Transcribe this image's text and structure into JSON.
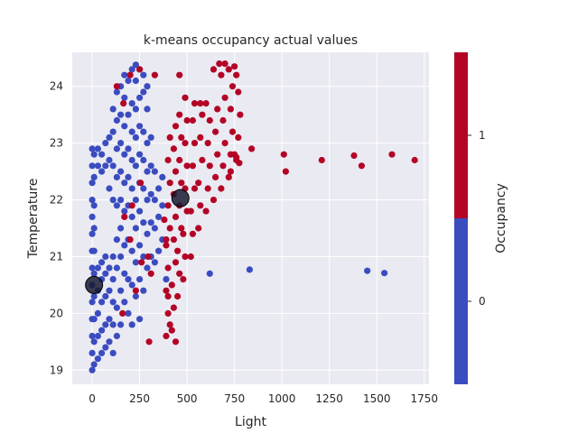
{
  "chart_data": {
    "type": "scatter",
    "title": "k-means occupancy actual values",
    "xlabel": "Light",
    "ylabel": "Temperature",
    "xlim": [
      -105,
      1775
    ],
    "ylim": [
      18.75,
      24.6
    ],
    "xticks": [
      0,
      250,
      500,
      750,
      1000,
      1250,
      1500,
      1750
    ],
    "yticks": [
      19,
      20,
      21,
      22,
      23,
      24
    ],
    "grid": true,
    "colorbar": {
      "label": "Occupancy",
      "ticks": [
        0,
        1
      ],
      "colors": [
        "#3b4cc0",
        "#b40426"
      ]
    },
    "centroids": [
      {
        "x": 10,
        "y": 20.5
      },
      {
        "x": 465,
        "y": 22.03
      }
    ],
    "series": [
      {
        "value": 0,
        "color": "#3b4cc0",
        "points": [
          [
            0,
            19.0
          ],
          [
            0,
            19.3
          ],
          [
            0,
            19.6
          ],
          [
            0,
            19.9
          ],
          [
            0,
            20.2
          ],
          [
            0,
            20.5
          ],
          [
            0,
            20.8
          ],
          [
            0,
            21.1
          ],
          [
            0,
            21.4
          ],
          [
            0,
            21.7
          ],
          [
            0,
            22.0
          ],
          [
            0,
            22.3
          ],
          [
            0,
            22.6
          ],
          [
            0,
            22.9
          ],
          [
            10,
            19.1
          ],
          [
            10,
            19.5
          ],
          [
            10,
            19.9
          ],
          [
            10,
            20.3
          ],
          [
            10,
            20.7
          ],
          [
            10,
            21.1
          ],
          [
            10,
            21.5
          ],
          [
            10,
            21.9
          ],
          [
            10,
            22.4
          ],
          [
            10,
            22.8
          ],
          [
            30,
            19.2
          ],
          [
            30,
            19.6
          ],
          [
            30,
            20.0
          ],
          [
            30,
            20.4
          ],
          [
            30,
            20.8
          ],
          [
            30,
            22.6
          ],
          [
            30,
            22.9
          ],
          [
            50,
            19.3
          ],
          [
            50,
            19.7
          ],
          [
            50,
            20.2
          ],
          [
            50,
            20.6
          ],
          [
            50,
            20.9
          ],
          [
            50,
            22.5
          ],
          [
            50,
            22.8
          ],
          [
            70,
            19.4
          ],
          [
            70,
            19.8
          ],
          [
            70,
            20.3
          ],
          [
            70,
            20.7
          ],
          [
            70,
            21.0
          ],
          [
            70,
            22.6
          ],
          [
            70,
            23.0
          ],
          [
            90,
            19.5
          ],
          [
            90,
            19.9
          ],
          [
            90,
            20.4
          ],
          [
            90,
            20.8
          ],
          [
            90,
            22.2
          ],
          [
            90,
            22.7
          ],
          [
            90,
            23.1
          ],
          [
            110,
            19.3
          ],
          [
            110,
            19.8
          ],
          [
            110,
            20.2
          ],
          [
            110,
            20.6
          ],
          [
            110,
            21.0
          ],
          [
            110,
            22.0
          ],
          [
            110,
            22.6
          ],
          [
            110,
            23.2
          ],
          [
            110,
            23.6
          ],
          [
            130,
            19.6
          ],
          [
            130,
            20.1
          ],
          [
            130,
            20.8
          ],
          [
            130,
            21.3
          ],
          [
            130,
            21.9
          ],
          [
            130,
            22.4
          ],
          [
            130,
            22.9
          ],
          [
            130,
            23.4
          ],
          [
            130,
            23.9
          ],
          [
            150,
            19.8
          ],
          [
            150,
            20.4
          ],
          [
            150,
            21.0
          ],
          [
            150,
            21.5
          ],
          [
            150,
            22.0
          ],
          [
            150,
            22.5
          ],
          [
            150,
            23.0
          ],
          [
            150,
            23.5
          ],
          [
            150,
            24.0
          ],
          [
            170,
            20.2
          ],
          [
            170,
            20.7
          ],
          [
            170,
            21.2
          ],
          [
            170,
            21.8
          ],
          [
            170,
            22.3
          ],
          [
            170,
            22.8
          ],
          [
            170,
            23.3
          ],
          [
            170,
            23.8
          ],
          [
            170,
            24.2
          ],
          [
            190,
            20.0
          ],
          [
            190,
            20.6
          ],
          [
            190,
            21.3
          ],
          [
            190,
            21.9
          ],
          [
            190,
            22.4
          ],
          [
            190,
            22.9
          ],
          [
            190,
            23.5
          ],
          [
            190,
            24.1
          ],
          [
            210,
            19.8
          ],
          [
            210,
            20.5
          ],
          [
            210,
            21.1
          ],
          [
            210,
            21.7
          ],
          [
            210,
            22.2
          ],
          [
            210,
            22.7
          ],
          [
            210,
            23.2
          ],
          [
            210,
            23.7
          ],
          [
            210,
            24.3
          ],
          [
            230,
            20.3
          ],
          [
            230,
            20.9
          ],
          [
            230,
            21.5
          ],
          [
            230,
            22.0
          ],
          [
            230,
            22.6
          ],
          [
            230,
            23.1
          ],
          [
            230,
            23.6
          ],
          [
            230,
            24.1
          ],
          [
            230,
            24.38
          ],
          [
            250,
            19.9
          ],
          [
            250,
            20.6
          ],
          [
            250,
            21.2
          ],
          [
            250,
            21.8
          ],
          [
            250,
            22.3
          ],
          [
            250,
            22.8
          ],
          [
            250,
            23.3
          ],
          [
            250,
            23.8
          ],
          [
            250,
            24.3
          ],
          [
            270,
            20.4
          ],
          [
            270,
            21.0
          ],
          [
            270,
            21.6
          ],
          [
            270,
            22.2
          ],
          [
            270,
            22.7
          ],
          [
            270,
            23.2
          ],
          [
            270,
            23.9
          ],
          [
            270,
            24.2
          ],
          [
            290,
            20.8
          ],
          [
            290,
            21.4
          ],
          [
            290,
            22.0
          ],
          [
            290,
            22.5
          ],
          [
            290,
            23.0
          ],
          [
            290,
            23.6
          ],
          [
            290,
            24.0
          ],
          [
            310,
            21.0
          ],
          [
            310,
            21.6
          ],
          [
            310,
            22.1
          ],
          [
            310,
            22.6
          ],
          [
            310,
            23.1
          ],
          [
            330,
            20.9
          ],
          [
            330,
            21.5
          ],
          [
            330,
            22.0
          ],
          [
            330,
            22.5
          ],
          [
            350,
            21.1
          ],
          [
            350,
            21.7
          ],
          [
            350,
            22.2
          ],
          [
            370,
            21.3
          ],
          [
            370,
            21.9
          ],
          [
            370,
            22.4
          ],
          [
            390,
            20.6
          ],
          [
            620,
            20.7
          ],
          [
            830,
            20.77
          ],
          [
            1450,
            20.75
          ],
          [
            1540,
            20.71
          ]
        ]
      },
      {
        "value": 1,
        "color": "#b40426",
        "points": [
          [
            390,
            19.6
          ],
          [
            400,
            20.0
          ],
          [
            390,
            20.4
          ],
          [
            400,
            20.8
          ],
          [
            390,
            21.2
          ],
          [
            410,
            21.5
          ],
          [
            400,
            21.9
          ],
          [
            410,
            22.3
          ],
          [
            400,
            22.7
          ],
          [
            410,
            23.1
          ],
          [
            420,
            19.7
          ],
          [
            430,
            20.1
          ],
          [
            420,
            20.5
          ],
          [
            440,
            20.9
          ],
          [
            430,
            21.3
          ],
          [
            440,
            21.7
          ],
          [
            430,
            22.1
          ],
          [
            440,
            22.5
          ],
          [
            430,
            22.9
          ],
          [
            440,
            23.3
          ],
          [
            450,
            20.3
          ],
          [
            460,
            20.7
          ],
          [
            450,
            21.1
          ],
          [
            470,
            21.5
          ],
          [
            460,
            21.9
          ],
          [
            470,
            22.3
          ],
          [
            460,
            22.7
          ],
          [
            470,
            23.1
          ],
          [
            460,
            23.5
          ],
          [
            480,
            20.6
          ],
          [
            490,
            21.0
          ],
          [
            480,
            21.4
          ],
          [
            500,
            21.8
          ],
          [
            490,
            22.2
          ],
          [
            500,
            22.6
          ],
          [
            490,
            23.0
          ],
          [
            500,
            23.4
          ],
          [
            490,
            23.8
          ],
          [
            520,
            21.0
          ],
          [
            530,
            21.4
          ],
          [
            520,
            21.8
          ],
          [
            540,
            22.2
          ],
          [
            530,
            22.6
          ],
          [
            540,
            23.0
          ],
          [
            530,
            23.4
          ],
          [
            540,
            23.7
          ],
          [
            560,
            21.5
          ],
          [
            570,
            21.9
          ],
          [
            560,
            22.3
          ],
          [
            580,
            22.7
          ],
          [
            570,
            23.1
          ],
          [
            580,
            23.5
          ],
          [
            570,
            23.7
          ],
          [
            600,
            21.8
          ],
          [
            610,
            22.2
          ],
          [
            620,
            22.6
          ],
          [
            610,
            23.0
          ],
          [
            620,
            23.4
          ],
          [
            600,
            23.7
          ],
          [
            640,
            22.0
          ],
          [
            650,
            22.4
          ],
          [
            660,
            22.8
          ],
          [
            650,
            23.2
          ],
          [
            660,
            23.6
          ],
          [
            640,
            24.3
          ],
          [
            680,
            22.2
          ],
          [
            690,
            22.6
          ],
          [
            700,
            23.0
          ],
          [
            690,
            23.4
          ],
          [
            700,
            23.8
          ],
          [
            680,
            24.2
          ],
          [
            670,
            24.4
          ],
          [
            720,
            22.4
          ],
          [
            730,
            22.8
          ],
          [
            740,
            23.2
          ],
          [
            730,
            23.6
          ],
          [
            740,
            24.0
          ],
          [
            720,
            24.3
          ],
          [
            700,
            24.4
          ],
          [
            760,
            22.7
          ],
          [
            770,
            23.1
          ],
          [
            780,
            23.5
          ],
          [
            770,
            23.9
          ],
          [
            760,
            24.2
          ],
          [
            750,
            24.35
          ],
          [
            730,
            22.5
          ],
          [
            750,
            22.8
          ],
          [
            760,
            22.75
          ],
          [
            775,
            22.65
          ],
          [
            840,
            22.9
          ],
          [
            1010,
            22.8
          ],
          [
            1020,
            22.5
          ],
          [
            1210,
            22.7
          ],
          [
            1380,
            22.78
          ],
          [
            1420,
            22.6
          ],
          [
            1580,
            22.8
          ],
          [
            1700,
            22.7
          ],
          [
            165,
            23.7
          ],
          [
            130,
            24.0
          ],
          [
            200,
            24.2
          ],
          [
            250,
            24.3
          ],
          [
            330,
            24.2
          ],
          [
            460,
            24.2
          ],
          [
            210,
            21.9
          ],
          [
            255,
            22.3
          ],
          [
            170,
            21.7
          ],
          [
            200,
            21.3
          ],
          [
            295,
            21.0
          ],
          [
            160,
            20.0
          ],
          [
            230,
            20.4
          ],
          [
            260,
            20.9
          ],
          [
            310,
            20.7
          ],
          [
            390,
            21.3
          ],
          [
            380,
            21.65
          ],
          [
            400,
            20.3
          ],
          [
            410,
            19.8
          ],
          [
            440,
            19.5
          ],
          [
            300,
            19.5
          ]
        ]
      }
    ]
  }
}
